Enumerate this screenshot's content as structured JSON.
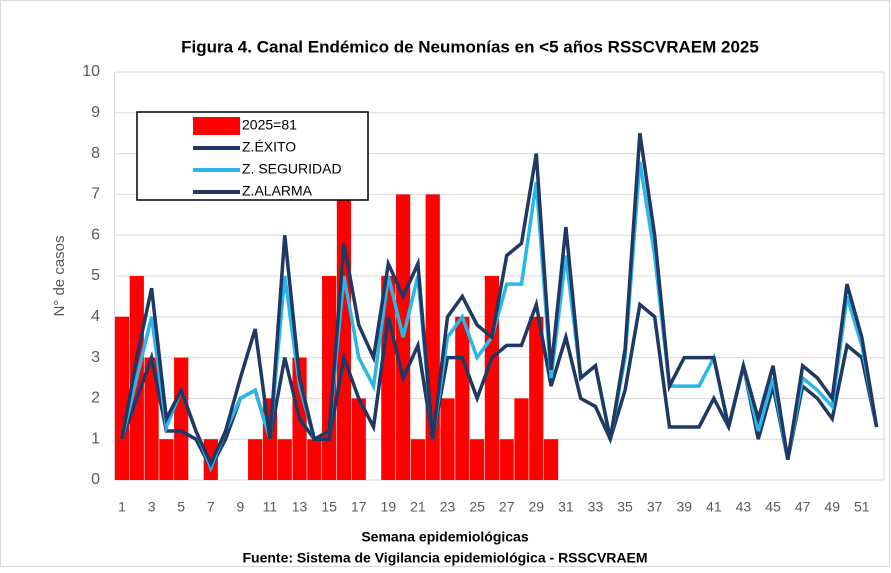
{
  "chart_data": {
    "type": "combo",
    "title": "Figura 4. Canal Endémico de Neumonías en <5 años RSSCVRAEM  2025",
    "y_label": "N° de casos",
    "x_label": "Semana epidemiológicas",
    "source": "Fuente: Sistema de Vigilancia epidemiológica  - RSSCVRAEM",
    "categories": [
      "1",
      null,
      "3",
      null,
      "5",
      null,
      "7",
      null,
      "9",
      null,
      "11",
      null,
      "13",
      null,
      "15",
      null,
      "17",
      null,
      "19",
      null,
      "21",
      null,
      "23",
      null,
      "25",
      null,
      "27",
      null,
      "29",
      null,
      "31",
      null,
      "33",
      null,
      "35",
      null,
      "37",
      null,
      "39",
      null,
      "41",
      null,
      "43",
      null,
      "45",
      null,
      "47",
      null,
      "49",
      null,
      "51",
      null
    ],
    "ylim": [
      0,
      10
    ],
    "yticks": [
      0,
      1,
      2,
      3,
      4,
      5,
      6,
      7,
      8,
      9,
      10
    ],
    "grid": true,
    "legend": "upper left",
    "series": [
      {
        "name": "2025=81",
        "type": "bar",
        "color": "#ff0000",
        "values": [
          4,
          5,
          3,
          1,
          3,
          0,
          1,
          0,
          0,
          1,
          2,
          1,
          3,
          1,
          5,
          9,
          2,
          0,
          5,
          7,
          1,
          7,
          2,
          4,
          1,
          5,
          1,
          2,
          4,
          1,
          null,
          null,
          null,
          null,
          null,
          null,
          null,
          null,
          null,
          null,
          null,
          null,
          null,
          null,
          null,
          null,
          null,
          null,
          null,
          null,
          null,
          null
        ]
      },
      {
        "name": "Z.ÉXITO",
        "type": "line",
        "color": "#1f3864",
        "values": [
          1,
          2,
          3,
          1.2,
          1.2,
          1,
          0.3,
          1,
          2,
          2.2,
          1,
          3,
          1.5,
          1,
          1,
          3,
          2,
          1.3,
          4,
          2.5,
          3.3,
          1,
          3,
          3,
          2,
          3,
          3.3,
          3.3,
          4.3,
          2.3,
          3.5,
          2,
          1.8,
          1,
          2.2,
          4.3,
          4,
          1.3,
          1.3,
          1.3,
          2,
          1.3,
          2.8,
          1,
          2.3,
          0.5,
          2.3,
          2,
          1.5,
          3.3,
          3,
          1.3
        ]
      },
      {
        "name": "Z. SEGURIDAD",
        "type": "line",
        "color": "#29b6e8",
        "values": [
          1,
          2.5,
          4,
          1.3,
          2.2,
          1.2,
          0.3,
          1.2,
          2,
          2.2,
          1,
          5,
          2.3,
          1,
          1.2,
          5,
          3,
          2.3,
          5,
          3.5,
          5,
          1,
          3.5,
          4,
          3,
          3.5,
          4.8,
          4.8,
          7.3,
          2.5,
          5.5,
          2.5,
          2.8,
          1,
          3,
          7.8,
          5.5,
          2.3,
          2.3,
          2.3,
          3,
          1.3,
          2.8,
          1.2,
          2.5,
          0.5,
          2.5,
          2.2,
          1.8,
          4.5,
          3.3,
          1.3
        ]
      },
      {
        "name": "Z.ALARMA",
        "type": "line",
        "color": "#203864",
        "values": [
          1,
          3,
          4.7,
          1.5,
          2.2,
          1.2,
          0.4,
          1.2,
          2.5,
          3.7,
          1,
          6,
          2.5,
          1,
          1.2,
          5.8,
          3.8,
          3,
          5.3,
          4.5,
          5.3,
          1,
          4,
          4.5,
          3.8,
          3.5,
          5.5,
          5.8,
          8,
          2.7,
          6.2,
          2.5,
          2.8,
          1,
          3.2,
          8.5,
          6,
          2.3,
          3,
          3,
          3,
          1.3,
          2.8,
          1.5,
          2.8,
          0.5,
          2.8,
          2.5,
          2,
          4.8,
          3.5,
          1.3
        ]
      }
    ]
  }
}
